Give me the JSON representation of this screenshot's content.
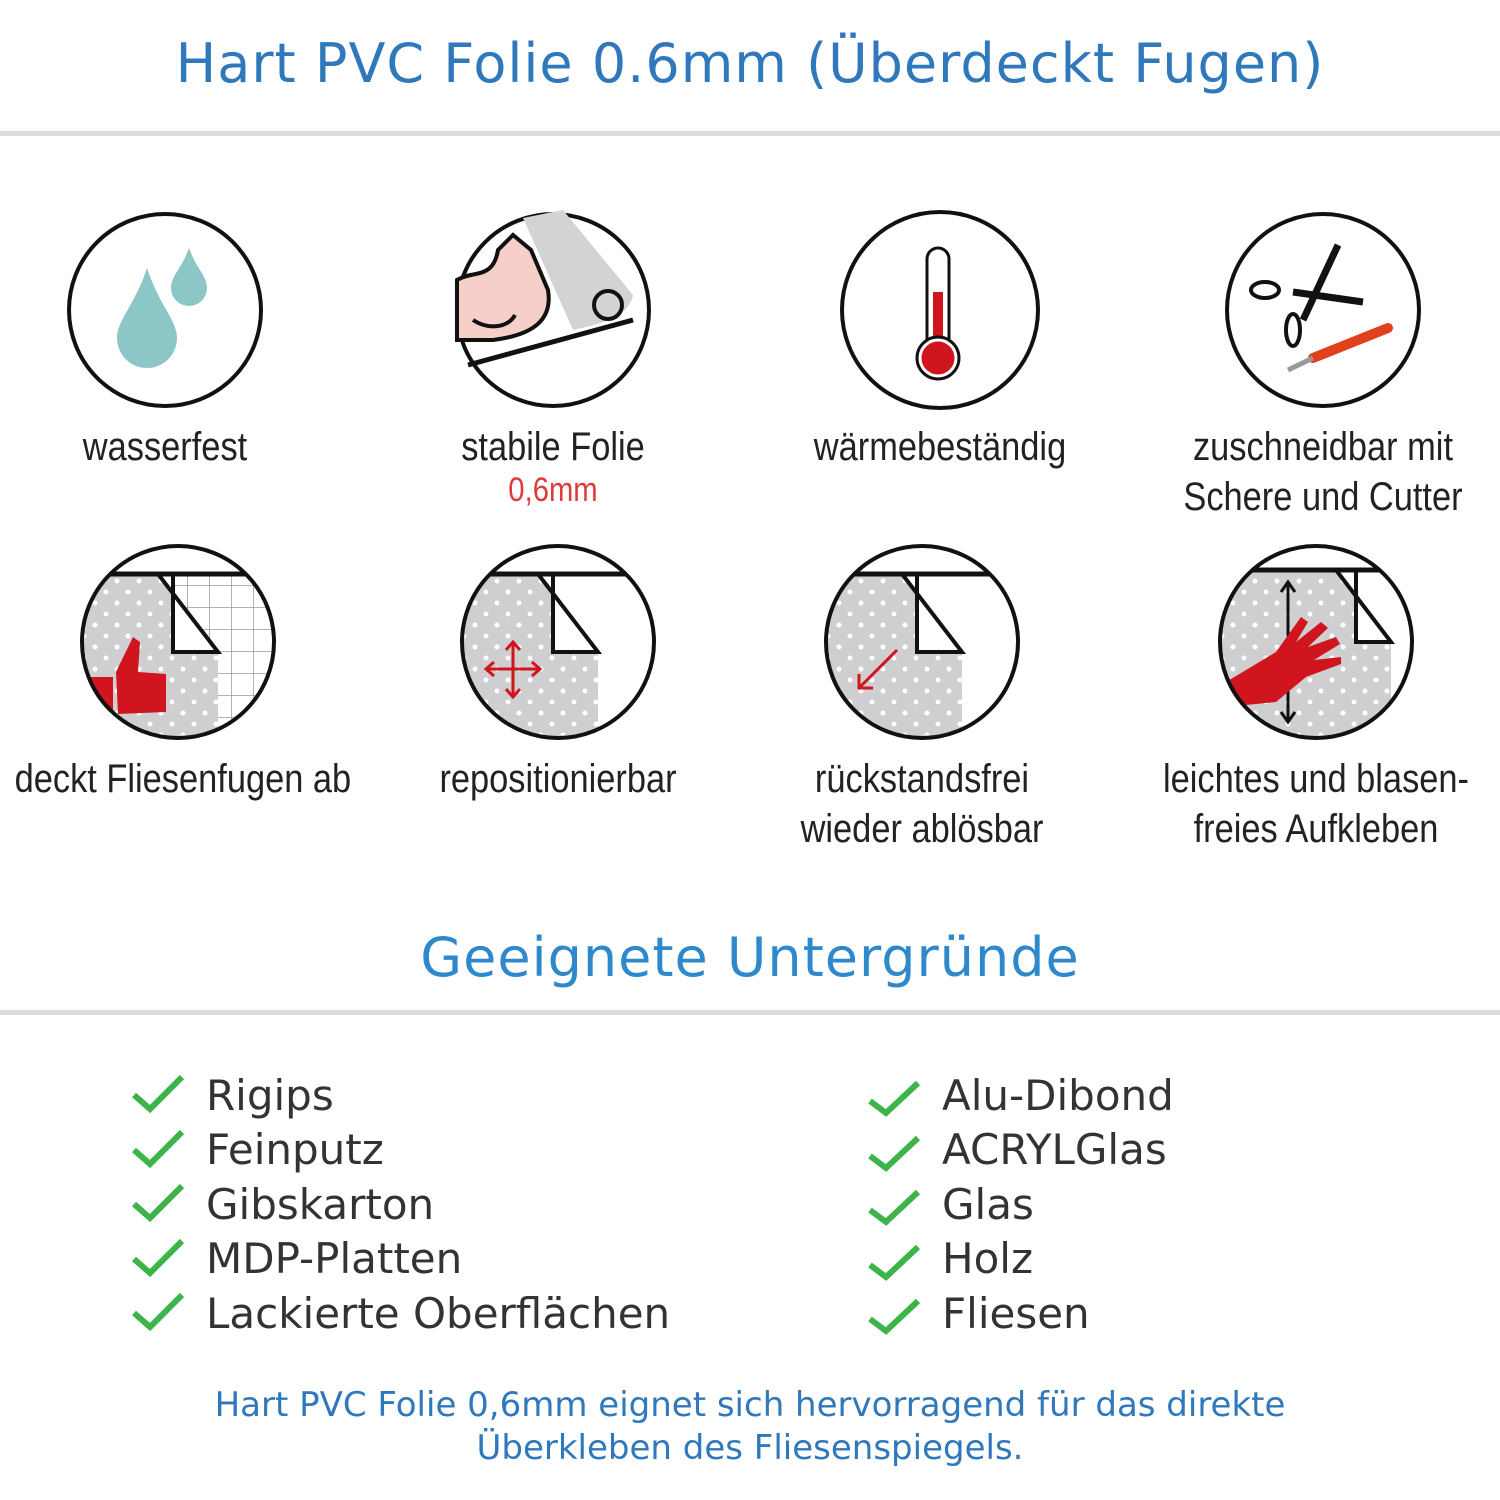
{
  "header": {
    "title": "Hart PVC Folie 0.6mm (Überdeckt Fugen)"
  },
  "features": [
    {
      "icon": "water-drops-icon",
      "lines": [
        "wasserfest"
      ]
    },
    {
      "icon": "strong-arm-film-icon",
      "lines": [
        "stabile Folie"
      ],
      "sub": "0,6mm"
    },
    {
      "icon": "thermometer-icon",
      "lines": [
        "wärmebeständig"
      ]
    },
    {
      "icon": "scissors-cutter-icon",
      "lines": [
        "zuschneidbar mit",
        "Schere und Cutter"
      ]
    },
    {
      "icon": "thumbs-up-tiles-icon",
      "lines": [
        "deckt Fliesenfugen ab"
      ]
    },
    {
      "icon": "move-arrows-icon",
      "lines": [
        "repositionierbar"
      ]
    },
    {
      "icon": "peel-arrow-icon",
      "lines": [
        "rückstandsfrei",
        "wieder ablösbar"
      ]
    },
    {
      "icon": "hand-smoothing-icon",
      "lines": [
        "leichtes und blasen-",
        "freies Aufkleben"
      ]
    }
  ],
  "surfaces": {
    "title": "Geeignete Untergründe",
    "left": [
      "Rigips",
      "Feinputz",
      "Gibskarton",
      "MDP-Platten",
      "Lackierte Oberflächen"
    ],
    "right": [
      "Alu-Dibond",
      "ACRYLGlas",
      "Glas",
      "Holz",
      "Fliesen"
    ]
  },
  "footer": {
    "lines": [
      "Hart PVC Folie 0,6mm eignet sich hervorragend für das direkte",
      "Überkleben des Fliesenspiegels."
    ]
  },
  "colors": {
    "title": "#2f78bc",
    "check": "#3cb44a",
    "accent_red": "#d0151f",
    "drop": "#8cc6c6"
  }
}
